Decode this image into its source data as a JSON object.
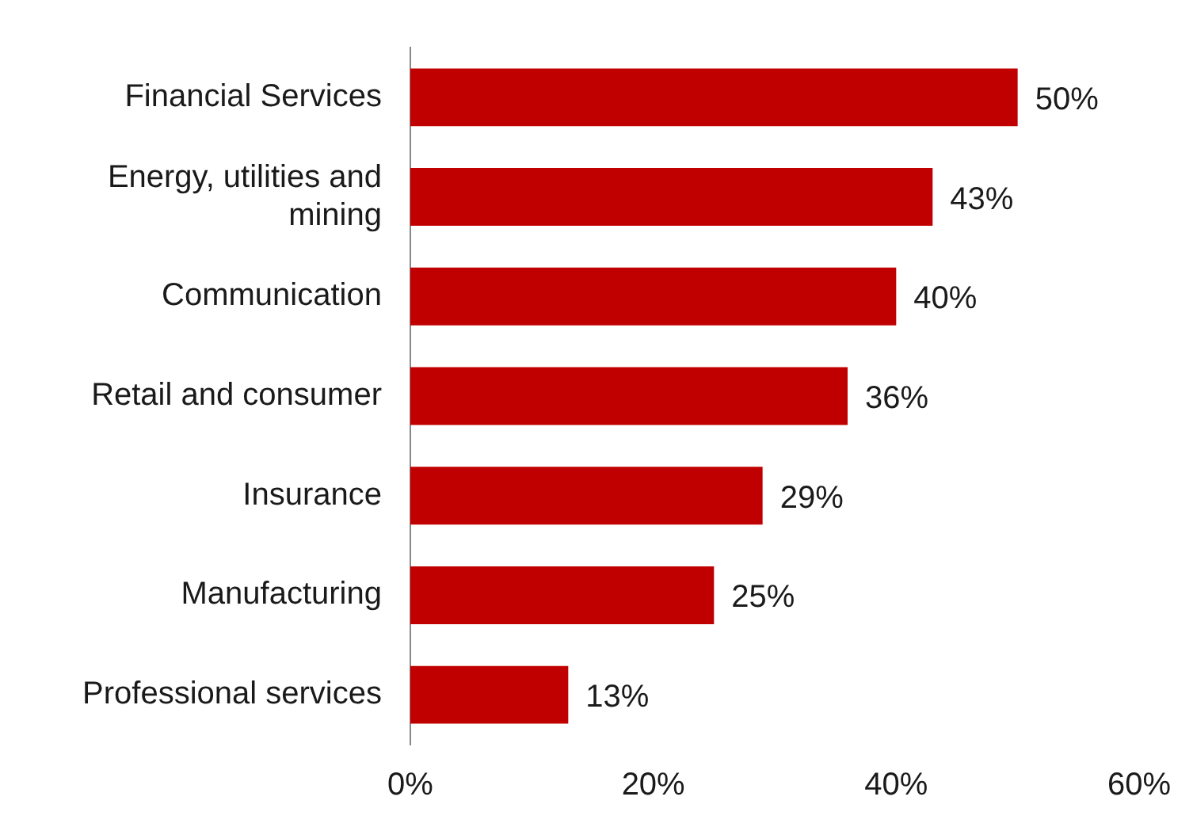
{
  "chart_data": {
    "type": "bar",
    "orientation": "horizontal",
    "categories": [
      "Financial Services",
      "Energy, utilities and mining",
      "Communication",
      "Retail and consumer",
      "Insurance",
      "Manufacturing",
      "Professional services"
    ],
    "values": [
      50,
      43,
      40,
      36,
      29,
      25,
      13
    ],
    "value_labels": [
      "50%",
      "43%",
      "40%",
      "36%",
      "29%",
      "25%",
      "13%"
    ],
    "color": "#c00000",
    "xlim": [
      0,
      60
    ],
    "xticks": [
      {
        "value": 0,
        "label": "0%"
      },
      {
        "value": 20,
        "label": "20%"
      },
      {
        "value": 40,
        "label": "40%"
      },
      {
        "value": 60,
        "label": "60%"
      }
    ],
    "grid": false,
    "legend": false
  }
}
